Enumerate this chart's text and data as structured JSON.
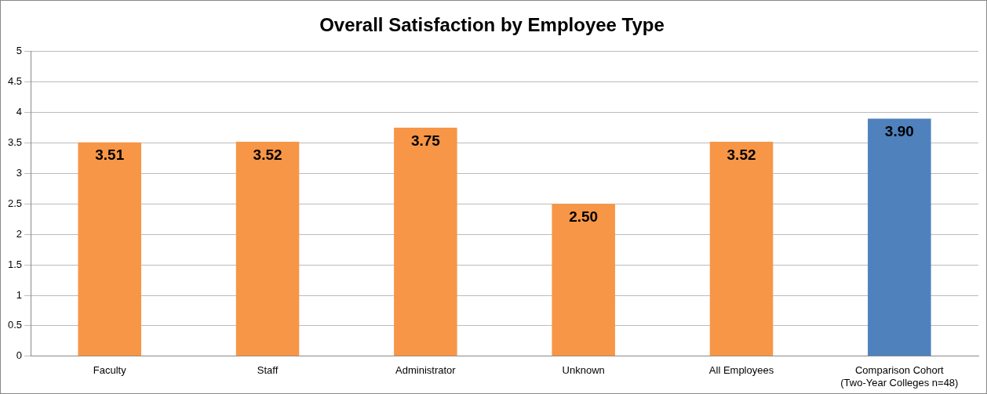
{
  "chart_data": {
    "type": "bar",
    "title": "Overall Satisfaction by Employee Type",
    "categories": [
      "Faculty",
      "Staff",
      "Administrator",
      "Unknown",
      "All Employees",
      "Comparison Cohort\n(Two-Year Colleges n=48)"
    ],
    "values": [
      3.51,
      3.52,
      3.75,
      2.5,
      3.52,
      3.9
    ],
    "value_labels": [
      "3.51",
      "3.52",
      "3.75",
      "2.50",
      "3.52",
      "3.90"
    ],
    "colors": [
      "#f79646",
      "#f79646",
      "#f79646",
      "#f79646",
      "#f79646",
      "#4f81bd"
    ],
    "ylim": [
      0,
      5
    ],
    "yticks": [
      0,
      0.5,
      1,
      1.5,
      2,
      2.5,
      3,
      3.5,
      4,
      4.5,
      5
    ],
    "grid": "y",
    "legend": false
  }
}
